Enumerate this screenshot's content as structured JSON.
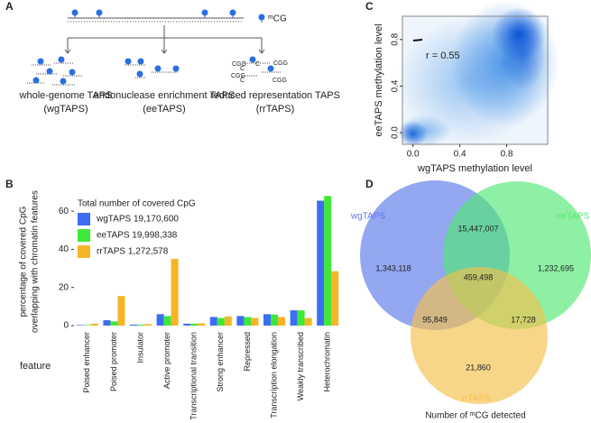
{
  "panel_labels": [
    "A",
    "B",
    "C",
    "D"
  ],
  "diagram": {
    "legend": "ᵐCG",
    "methods": [
      {
        "name": "whole-genome TAPS",
        "short": "(wgTAPS)"
      },
      {
        "name": "endonuclease enrichment TAPS",
        "short": "(eeTAPS)"
      },
      {
        "name": "reduced representation TAPS",
        "short": "(rrTAPS)"
      }
    ],
    "rr_labels": [
      "CGG",
      "C",
      "C",
      "CGG",
      "CGG",
      "C",
      "CGG"
    ]
  },
  "chart_data": [
    {
      "type": "bar",
      "y_label": [
        "percentage of  covered CpG",
        "overlapping with chromatin features"
      ],
      "x_label": "feature",
      "legend_title": "Total number of covered CpG",
      "categories": [
        "Poised enhancer",
        "Poised promoter",
        "Insulator",
        "Active promoter",
        "Transcriptional transition",
        "Strong enhancer",
        "Repressed",
        "Transcription elongation",
        "Weakly transcribed",
        "Heterochromatin"
      ],
      "series": [
        {
          "name": "wgTAPS 19,170,600",
          "color": "#3b6ef2",
          "values": [
            0.3,
            2.8,
            0.5,
            6,
            1,
            4.5,
            5,
            6,
            8,
            65.5
          ]
        },
        {
          "name": "eeTAPS 19,998,338",
          "color": "#3ee83a",
          "values": [
            0.3,
            2.2,
            0.5,
            5,
            1,
            4,
            4.5,
            5.8,
            8,
            68
          ]
        },
        {
          "name": "rrTAPS 1,272,578",
          "color": "#f6b526",
          "values": [
            1,
            15.5,
            0.8,
            35,
            1.2,
            4.8,
            4,
            4.5,
            4,
            28.5
          ]
        }
      ],
      "ylim": [
        0,
        70
      ],
      "yticks": [
        0,
        20,
        40,
        60
      ]
    },
    {
      "type": "density",
      "x_label": "wgTAPS methylation level",
      "y_label": "eeTAPS methylation level",
      "annotation": "r = 0.55",
      "xlim": [
        -0.09,
        1.15
      ],
      "ylim": [
        -0.1,
        1.0
      ],
      "xticks": [
        {
          "value": 0,
          "label": "0.0"
        },
        0.4,
        0.8
      ],
      "yticks": [
        {
          "value": 0,
          "label": "0.0"
        },
        0.4,
        0.8
      ]
    },
    {
      "type": "venn",
      "sets": [
        {
          "name": "wgTAPS",
          "color": "#5a78ea"
        },
        {
          "name": "eeTAPS",
          "color": "#52e874"
        },
        {
          "name": "rrTAPS",
          "color": "#f5c04a"
        }
      ],
      "values": [
        1343118,
        15447007,
        1232695,
        459498,
        95849,
        17728,
        21860
      ],
      "value_labels": [
        "1,343,118",
        "15,447,007",
        "1,232,695",
        "459,498",
        "95,849",
        "17,728",
        "21,860"
      ],
      "caption": "Number of ᵐCG detected"
    }
  ]
}
